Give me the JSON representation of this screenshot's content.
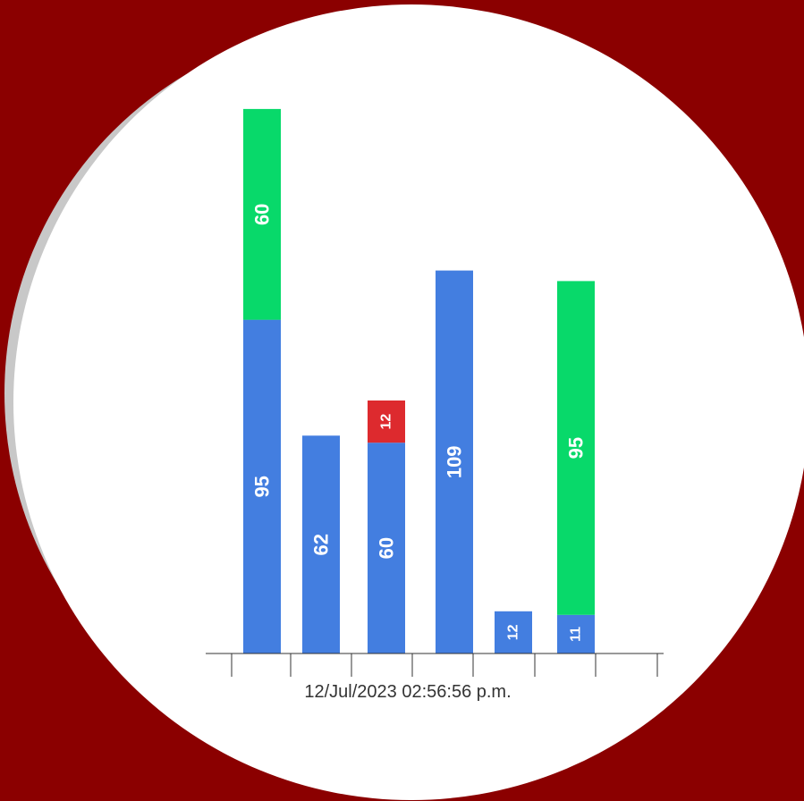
{
  "colors": {
    "background": "#8b0000",
    "backdrop_circle": "#c8c8c8",
    "plot_circle": "#ffffff",
    "axis": "#333333",
    "label_text": "#ffffff",
    "caption_text": "#333333"
  },
  "chart_data": {
    "type": "bar",
    "stacked": true,
    "title": "",
    "xlabel": "12/Jul/2023 02:56:56 p.m.",
    "ylabel": "",
    "categories": [
      "",
      "",
      "",
      "",
      "",
      ""
    ],
    "series": [
      {
        "color": "#437ee0",
        "values": [
          95,
          62,
          60,
          109,
          12,
          11
        ]
      },
      {
        "color": "#dd2a2e",
        "values": [
          0,
          0,
          12,
          0,
          0,
          0
        ]
      },
      {
        "color": "#08d96a",
        "values": [
          60,
          0,
          0,
          0,
          0,
          95
        ]
      }
    ],
    "ylim": [
      0,
      155
    ],
    "grid": false,
    "legend": "none",
    "data_labels": true
  }
}
